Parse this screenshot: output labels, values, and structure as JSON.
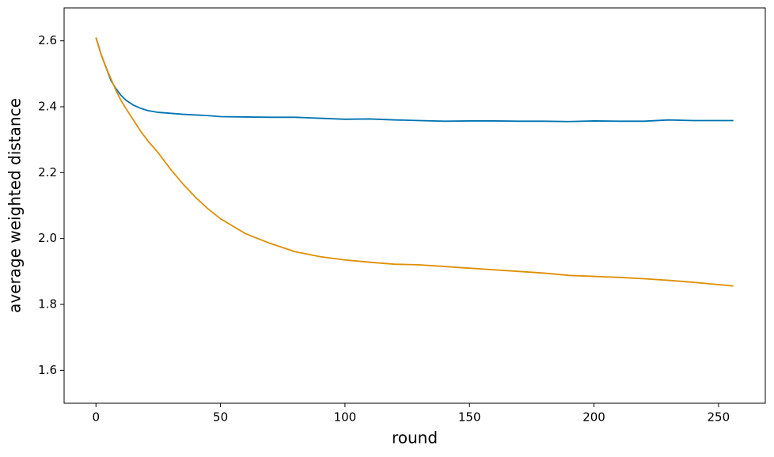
{
  "chart_data": {
    "type": "line",
    "xlabel": "round",
    "ylabel": "average weighted distance",
    "x": [
      0,
      2,
      4,
      6,
      8,
      10,
      12,
      15,
      18,
      21,
      25,
      30,
      35,
      40,
      45,
      50,
      60,
      70,
      80,
      90,
      100,
      110,
      120,
      130,
      140,
      150,
      160,
      170,
      180,
      190,
      200,
      210,
      220,
      230,
      240,
      256
    ],
    "series": [
      {
        "color": "#0173b2",
        "values": [
          2.61,
          2.56,
          2.52,
          2.48,
          2.455,
          2.435,
          2.42,
          2.405,
          2.395,
          2.388,
          2.383,
          2.38,
          2.377,
          2.375,
          2.373,
          2.37,
          2.369,
          2.368,
          2.368,
          2.365,
          2.362,
          2.363,
          2.36,
          2.358,
          2.356,
          2.357,
          2.357,
          2.356,
          2.356,
          2.355,
          2.357,
          2.356,
          2.356,
          2.36,
          2.358,
          2.358
        ]
      },
      {
        "color": "#de8f05",
        "values": [
          2.61,
          2.56,
          2.52,
          2.485,
          2.45,
          2.42,
          2.395,
          2.36,
          2.325,
          2.295,
          2.26,
          2.21,
          2.165,
          2.125,
          2.09,
          2.06,
          2.015,
          1.985,
          1.96,
          1.945,
          1.935,
          1.928,
          1.922,
          1.92,
          1.915,
          1.91,
          1.905,
          1.9,
          1.895,
          1.888,
          1.885,
          1.882,
          1.878,
          1.873,
          1.867,
          1.856
        ]
      }
    ],
    "xlim": [
      -12.8,
      268.8
    ],
    "xticks": [
      0,
      50,
      100,
      150,
      200,
      250
    ],
    "ylim": [
      1.5,
      2.7
    ],
    "yticks": [
      1.6,
      1.8,
      {
        "value": 2,
        "label": "2.0"
      },
      2.2,
      2.4,
      2.6
    ],
    "grid": false
  }
}
